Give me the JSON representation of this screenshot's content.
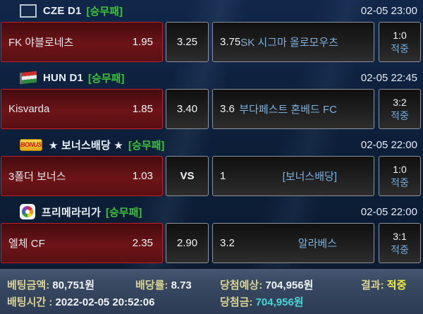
{
  "colors": {
    "market_green": "#3cc13c",
    "away_team_blue": "#7db1e0",
    "hit_blue": "#74abdc",
    "home_box_border": "#c22128",
    "summary_label_khaki": "#d9d494",
    "result_yellow": "#efec3f",
    "winnings_cyan": "#45d7d7"
  },
  "sections": [
    {
      "icon": "czech-flag",
      "league": "CZE D1",
      "market": "[승무패]",
      "datetime": "02-05 23:00",
      "home": {
        "name": "FK 야블로네츠",
        "odds": "1.95"
      },
      "draw": "3.25",
      "away": {
        "odds": "3.75",
        "name": "SK 시그마 올로모우츠"
      },
      "result": {
        "score": "1:0",
        "status": "적중"
      }
    },
    {
      "icon": "hungary-flag",
      "league": "HUN D1",
      "market": "[승무패]",
      "datetime": "02-05 22:45",
      "home": {
        "name": "Kisvarda",
        "odds": "1.85"
      },
      "draw": "3.40",
      "away": {
        "odds": "3.6",
        "name": "부다페스트 혼베드 FC"
      },
      "result": {
        "score": "3:2",
        "status": "적중"
      }
    },
    {
      "icon": "bonus-badge",
      "badge": "BONUS",
      "league": "★ 보너스배당 ★",
      "market": "[승무패]",
      "datetime": "02-05 22:00",
      "home": {
        "name": "3폴더 보너스",
        "odds": "1.03"
      },
      "draw": "VS",
      "away": {
        "odds": "1",
        "name": "[보너스배당]"
      },
      "result": {
        "score": "1:0",
        "status": "적중"
      }
    },
    {
      "icon": "laliga-logo",
      "league": "프리메라리가",
      "market": "[승무패]",
      "datetime": "02-05 22:00",
      "home": {
        "name": "엘체 CF",
        "odds": "2.35"
      },
      "draw": "2.90",
      "away": {
        "odds": "3.2",
        "name": "알라베스"
      },
      "result": {
        "score": "3:1",
        "status": "적중"
      }
    }
  ],
  "summary": {
    "bet_amount_label": "베팅금액:",
    "bet_amount": "80,751원",
    "odds_rate_label": "배당률:",
    "odds_rate": "8.73",
    "expected_label": "당첨예상:",
    "expected": "704,956원",
    "result_label": "결과:",
    "result": "적중",
    "bet_time_label": "배팅시간 :",
    "bet_time": "2022-02-05 20:52:06",
    "winnings_label": "당첨금:",
    "winnings": "704,956원"
  }
}
